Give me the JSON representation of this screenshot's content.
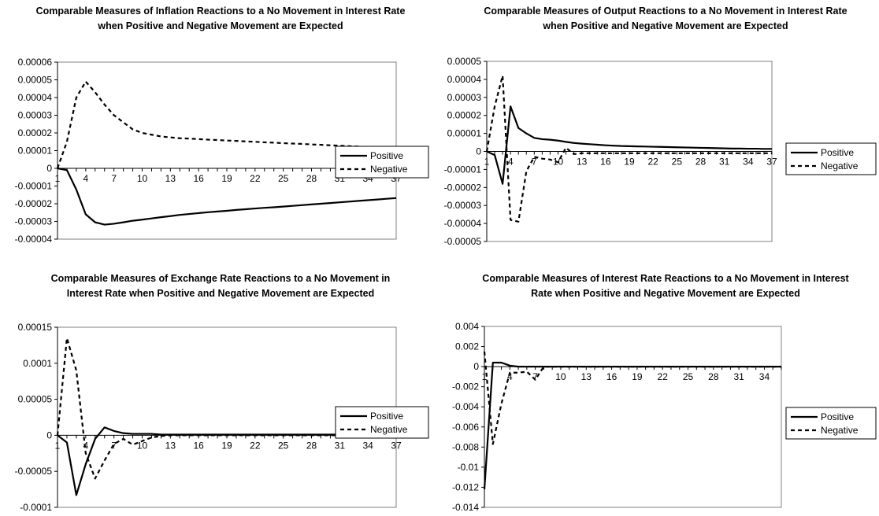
{
  "chart_data": [
    {
      "type": "line",
      "title": "Comparable Measures of Inflation Reactions to a No Movement in Interest Rate when Positive and Negative Movement are Expected",
      "y_ticks": [
        "0.00006",
        "0.00005",
        "0.00004",
        "0.00003",
        "0.00002",
        "0.00001",
        "0",
        "-0.00001",
        "-0.00002",
        "-0.00003",
        "-0.00004"
      ],
      "ylim": [
        -4e-05,
        6e-05
      ],
      "x_ticks": [
        "1",
        "4",
        "7",
        "10",
        "13",
        "16",
        "19",
        "22",
        "25",
        "28",
        "31",
        "34",
        "37"
      ],
      "x_count": 37,
      "legend_position": "right",
      "series": [
        {
          "name": "Positive",
          "style": "solid",
          "values": [
            0,
            -1e-06,
            -1.2e-05,
            -2.6e-05,
            -3.05e-05,
            -3.18e-05,
            -3.13e-05,
            -3.05e-05,
            -2.96e-05,
            -2.9e-05,
            -2.83e-05,
            -2.76e-05,
            -2.7e-05,
            -2.63e-05,
            -2.58e-05,
            -2.53e-05,
            -2.48e-05,
            -2.44e-05,
            -2.4e-05,
            -2.35e-05,
            -2.31e-05,
            -2.27e-05,
            -2.23e-05,
            -2.2e-05,
            -2.16e-05,
            -2.12e-05,
            -2.08e-05,
            -2.04e-05,
            -2e-05,
            -1.96e-05,
            -1.92e-05,
            -1.88e-05,
            -1.84e-05,
            -1.8e-05,
            -1.76e-05,
            -1.72e-05,
            -1.68e-05
          ]
        },
        {
          "name": "Negative",
          "style": "dashed",
          "values": [
            0,
            1.5e-05,
            4e-05,
            4.9e-05,
            4.3e-05,
            3.6e-05,
            3e-05,
            2.6e-05,
            2.2e-05,
            2e-05,
            1.9e-05,
            1.8e-05,
            1.75e-05,
            1.7e-05,
            1.68e-05,
            1.65e-05,
            1.62e-05,
            1.6e-05,
            1.57e-05,
            1.55e-05,
            1.52e-05,
            1.5e-05,
            1.47e-05,
            1.45e-05,
            1.42e-05,
            1.4e-05,
            1.38e-05,
            1.35e-05,
            1.33e-05,
            1.3e-05,
            1.28e-05,
            1.25e-05,
            1.23e-05,
            1.2e-05,
            1.18e-05,
            1.16e-05,
            1.13e-05
          ]
        }
      ]
    },
    {
      "type": "line",
      "title": "Comparable Measures of Output Reactions to a No Movement in Interest Rate when Positive and Negative Movement are Expected",
      "y_ticks": [
        "0.00005",
        "0.00004",
        "0.00003",
        "0.00002",
        "0.00001",
        "0",
        "-0.00001",
        "-0.00002",
        "-0.00003",
        "-0.00004",
        "-0.00005"
      ],
      "ylim": [
        -5e-05,
        5e-05
      ],
      "x_ticks": [
        "1",
        "4",
        "7",
        "10",
        "13",
        "16",
        "19",
        "22",
        "25",
        "28",
        "31",
        "34",
        "37"
      ],
      "x_count": 37,
      "legend_position": "right",
      "series": [
        {
          "name": "Positive",
          "style": "solid",
          "values": [
            0,
            -2e-06,
            -1.8e-05,
            2.5e-05,
            1.3e-05,
            1e-05,
            7.5e-06,
            6.8e-06,
            6.5e-06,
            6e-06,
            5.3e-06,
            4.7e-06,
            4.3e-06,
            4e-06,
            3.7e-06,
            3.4e-06,
            3.2e-06,
            3e-06,
            2.9e-06,
            2.8e-06,
            2.7e-06,
            2.6e-06,
            2.5e-06,
            2.4e-06,
            2.3e-06,
            2.2e-06,
            2.1e-06,
            2e-06,
            1.9e-06,
            1.8e-06,
            1.7e-06,
            1.6e-06,
            1.6e-06,
            1.5e-06,
            1.5e-06,
            1.4e-06,
            1.4e-06
          ]
        },
        {
          "name": "Negative",
          "style": "dashed",
          "values": [
            0,
            2.5e-05,
            4.2e-05,
            -3.8e-05,
            -3.9e-05,
            -1.1e-05,
            -3e-06,
            -4e-06,
            -4.5e-06,
            -6e-06,
            2e-06,
            -1.5e-06,
            -1e-06,
            -1e-06,
            -1e-06,
            -1e-06,
            -1e-06,
            -1e-06,
            -1e-06,
            -1e-06,
            -1e-06,
            -1e-06,
            -1e-06,
            -1e-06,
            -1e-06,
            -1e-06,
            -1e-06,
            -1e-06,
            -1e-06,
            -1e-06,
            -1e-06,
            -1e-06,
            -1e-06,
            -1e-06,
            -1e-06,
            -1e-06,
            -1e-06
          ]
        }
      ]
    },
    {
      "type": "line",
      "title": "Comparable Measures of Exchange Rate Reactions to a No Movement in Interest Rate when Positive and Negative Movement are Expected",
      "y_ticks": [
        "0.00015",
        "0.0001",
        "0.00005",
        "0",
        "-0.00005",
        "-0.0001"
      ],
      "ylim": [
        -0.0001,
        0.00015
      ],
      "x_ticks": [
        "1",
        "4",
        "7",
        "10",
        "13",
        "16",
        "19",
        "22",
        "25",
        "28",
        "31",
        "34",
        "37"
      ],
      "x_count": 37,
      "legend_position": "right",
      "series": [
        {
          "name": "Positive",
          "style": "solid",
          "values": [
            0,
            -1e-05,
            -8.3e-05,
            -4e-05,
            -5e-06,
            1.1e-05,
            6e-06,
            3e-06,
            2e-06,
            2e-06,
            2e-06,
            1e-06,
            1e-06,
            1e-06,
            1e-06,
            1e-06,
            1e-06,
            1e-06,
            1e-06,
            1e-06,
            1e-06,
            1e-06,
            1e-06,
            1e-06,
            1e-06,
            1e-06,
            1e-06,
            1e-06,
            1e-06,
            1e-06,
            1e-06,
            1e-06,
            1e-06,
            1e-06,
            1e-06,
            1e-06,
            1e-06
          ]
        },
        {
          "name": "Negative",
          "style": "dashed",
          "values": [
            0,
            0.000135,
            9e-05,
            -2.5e-05,
            -6e-05,
            -3.5e-05,
            -1.2e-05,
            -5e-06,
            -1.3e-05,
            -8e-06,
            -3e-06,
            -1e-06,
            0,
            0,
            0,
            0,
            0,
            0,
            0,
            0,
            0,
            0,
            0,
            0,
            0,
            0,
            0,
            0,
            0,
            0,
            0,
            0,
            0,
            0,
            0,
            0,
            0
          ]
        }
      ]
    },
    {
      "type": "line",
      "title": "Comparable Measures of Interest Rate Reactions to a No Movement in Interest Rate when Positive and Negative Movement are Expected",
      "y_ticks": [
        "0.004",
        "0.002",
        "0",
        "-0.002",
        "-0.004",
        "-0.006",
        "-0.008",
        "-0.01",
        "-0.012",
        "-0.014"
      ],
      "ylim": [
        -0.014,
        0.004
      ],
      "x_ticks": [
        "1",
        "4",
        "7",
        "10",
        "13",
        "16",
        "19",
        "22",
        "25",
        "28",
        "31",
        "34"
      ],
      "x_count": 36,
      "legend_position": "right",
      "series": [
        {
          "name": "Positive",
          "style": "solid",
          "values": [
            -0.0122,
            0.0004,
            0.0004,
            0.0001,
            0,
            0,
            0,
            0,
            0,
            0,
            0,
            0,
            0,
            0,
            0,
            0,
            0,
            0,
            0,
            0,
            0,
            0,
            0,
            0,
            0,
            0,
            0,
            0,
            0,
            0,
            0,
            0,
            0,
            0,
            0,
            0
          ]
        },
        {
          "name": "Negative",
          "style": "dashed",
          "values": [
            0.0015,
            -0.0077,
            -0.0037,
            -0.0006,
            -0.0006,
            -0.0005,
            -0.0013,
            0,
            0,
            0,
            0,
            0,
            0,
            0,
            0,
            0,
            0,
            0,
            0,
            0,
            0,
            0,
            0,
            0,
            0,
            0,
            0,
            0,
            0,
            0,
            0,
            0,
            0,
            0,
            0,
            0
          ]
        }
      ]
    }
  ]
}
